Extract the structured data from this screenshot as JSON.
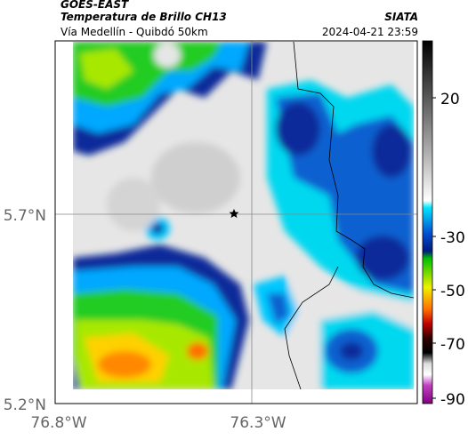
{
  "header": {
    "satellite": "GOES-EAST",
    "product": "Temperatura de Brillo CH13",
    "source": "SIATA",
    "route": "Vía Medellín - Quibdó 50km",
    "timestamp": "2024-04-21 23:59"
  },
  "map": {
    "lat_labels": [
      "5.7°N",
      "5.2°N"
    ],
    "lon_labels": [
      "76.8°W",
      "76.3°W"
    ]
  },
  "colorbar": {
    "ticks": [
      20,
      -30,
      -50,
      -70,
      -90
    ]
  }
}
